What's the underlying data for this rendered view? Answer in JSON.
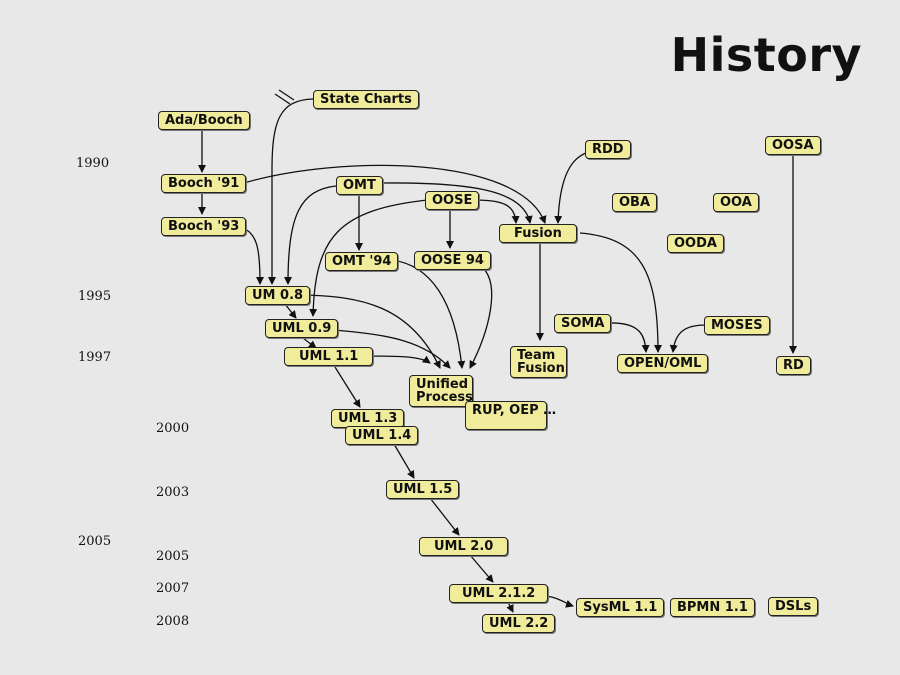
{
  "title": "History",
  "years": [
    "1990",
    "1995",
    "1997",
    "2000",
    "2003",
    "2005",
    "2005",
    "2007",
    "2008"
  ],
  "nodes": {
    "ada_booch": "Ada/Booch",
    "state_charts": "State Charts",
    "booch91": "Booch '91",
    "booch93": "Booch '93",
    "omt": "OMT",
    "oose": "OOSE",
    "omt94": "OMT '94",
    "oose94": "OOSE 94",
    "fusion": "Fusion",
    "rdd": "RDD",
    "oba": "OBA",
    "ooa": "OOA",
    "oosa": "OOSA",
    "ooda": "OODA",
    "um08": "UM 0.8",
    "uml09": "UML 0.9",
    "uml11": "UML 1.1",
    "unified_process": "Unified Process",
    "rup_oep": "RUP, OEP …",
    "team_fusion": "Team Fusion",
    "soma": "SOMA",
    "moses": "MOSES",
    "open_oml": "OPEN/OML",
    "rd": "RD",
    "uml13": "UML 1.3",
    "uml14": "UML 1.4",
    "uml15": "UML 1.5",
    "uml20": "UML 2.0",
    "uml212": "UML 2.1.2",
    "uml22": "UML 2.2",
    "sysml": "SysML 1.1",
    "bpmn": "BPMN 1.1",
    "dsls": "DSLs"
  },
  "colors": {
    "node_fill": "#f0ec9c",
    "edge": "#111111",
    "background": "#e8e8e8"
  }
}
